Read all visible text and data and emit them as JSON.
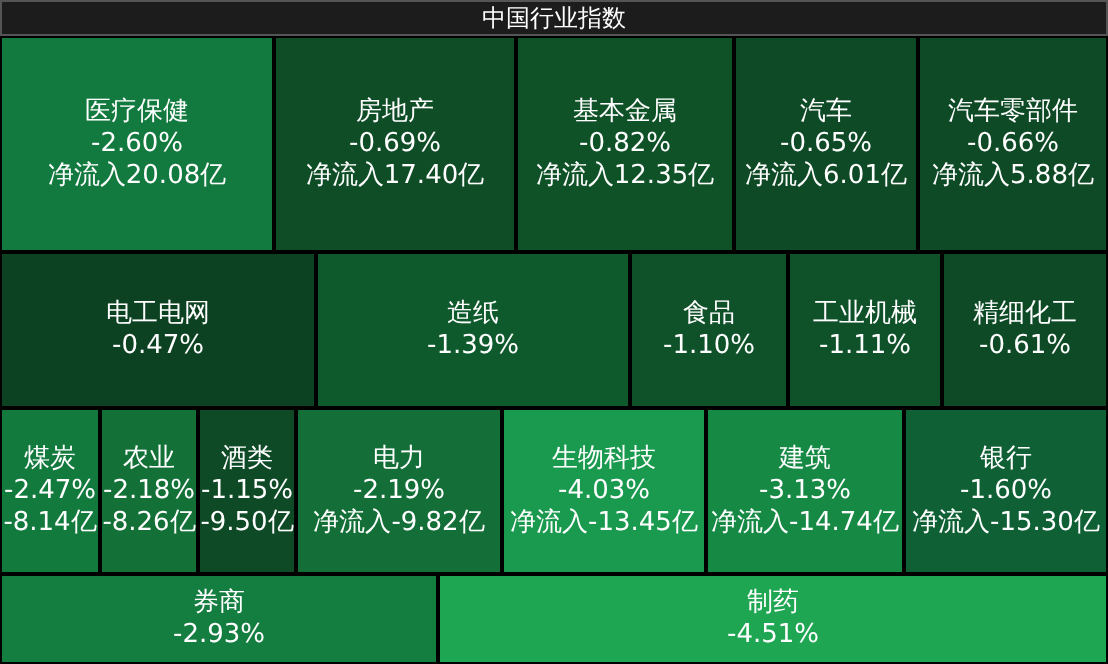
{
  "chart_data": {
    "type": "other",
    "title": "中国行业指数",
    "categories": [
      "医疗保健",
      "房地产",
      "基本金属",
      "汽车",
      "汽车零部件",
      "电工电网",
      "造纸",
      "食品",
      "工业机械",
      "精细化工",
      "煤炭",
      "农业",
      "酒类",
      "电力",
      "生物科技",
      "建筑",
      "银行",
      "券商",
      "制药"
    ],
    "series": [
      {
        "colors": [
          "#137a3f",
          "#0e4d26",
          "#0f5228",
          "#0e4a25",
          "#0e4a25",
          "#0c4121",
          "#0f5a2d",
          "#0f5129",
          "#0f5129",
          "#0d4a25",
          "#137a3e",
          "#137037",
          "#0f4a26",
          "#136e37",
          "#1a9a4e",
          "#168a45",
          "#106035",
          "#147d40",
          "#1ea653"
        ],
        "values": [
          -2.6,
          -0.69,
          -0.82,
          -0.65,
          -0.66,
          -0.47,
          -1.39,
          -1.1,
          -1.11,
          -0.61,
          -2.47,
          -2.18,
          -1.15,
          -2.19,
          -4.03,
          -3.13,
          -1.6,
          -2.93,
          -4.51
        ],
        "value_labels": [
          "-2.60%",
          "-0.69%",
          "-0.82%",
          "-0.65%",
          "-0.66%",
          "-0.47%",
          "-1.39%",
          "-1.10%",
          "-1.11%",
          "-0.61%",
          "-2.47%",
          "-2.18%",
          "-1.15%",
          "-2.19%",
          "-4.03%",
          "-3.13%",
          "-1.60%",
          "-2.93%",
          "-4.51%"
        ]
      },
      {
        "values": [
          20.08,
          17.4,
          12.35,
          6.01,
          5.88,
          null,
          null,
          null,
          null,
          null,
          -8.14,
          -8.26,
          -9.5,
          -9.82,
          -13.45,
          -14.74,
          -15.3,
          null,
          null
        ],
        "value_labels": [
          "净流入20.08亿",
          "净流入17.40亿",
          "净流入12.35亿",
          "净流入6.01亿",
          "净流入5.88亿",
          null,
          null,
          null,
          null,
          null,
          "-8.14亿",
          "-8.26亿",
          "-9.50亿",
          "净流入-9.82亿",
          "净流入-13.45亿",
          "净流入-14.74亿",
          "净流入-15.30亿",
          null,
          null
        ]
      }
    ]
  }
}
